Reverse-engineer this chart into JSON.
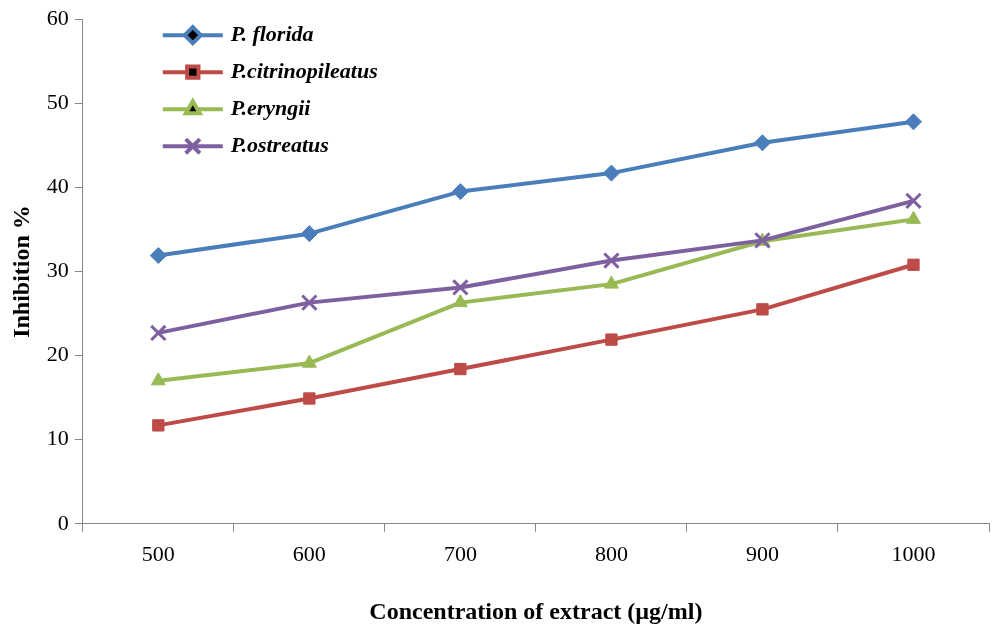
{
  "chart_data": {
    "type": "line",
    "xlabel": "Concentration of extract (µg/ml)",
    "ylabel": "Inhibition %",
    "categories": [
      "500",
      "600",
      "700",
      "800",
      "900",
      "1000"
    ],
    "ylim": [
      0,
      60
    ],
    "yticks": [
      0,
      10,
      20,
      30,
      40,
      50,
      60
    ],
    "grid": false,
    "legend": "top left",
    "line_style": "solid",
    "series": [
      {
        "name": "P. florida",
        "color": "#4a7ebb",
        "marker": "diamond",
        "values": [
          31.9,
          34.5,
          39.5,
          41.7,
          45.3,
          47.8
        ]
      },
      {
        "name": "P.citrinopileatus",
        "color": "#be4b48",
        "marker": "square",
        "values": [
          11.7,
          14.9,
          18.4,
          21.9,
          25.5,
          30.8
        ]
      },
      {
        "name": "P.eryngii",
        "color": "#98b954",
        "marker": "triangle",
        "values": [
          17.0,
          19.1,
          26.3,
          28.5,
          33.6,
          36.2
        ]
      },
      {
        "name": "P.ostreatus",
        "color": "#7d60a0",
        "marker": "cross",
        "values": [
          22.7,
          26.3,
          28.1,
          31.3,
          33.7,
          38.4
        ]
      }
    ]
  }
}
